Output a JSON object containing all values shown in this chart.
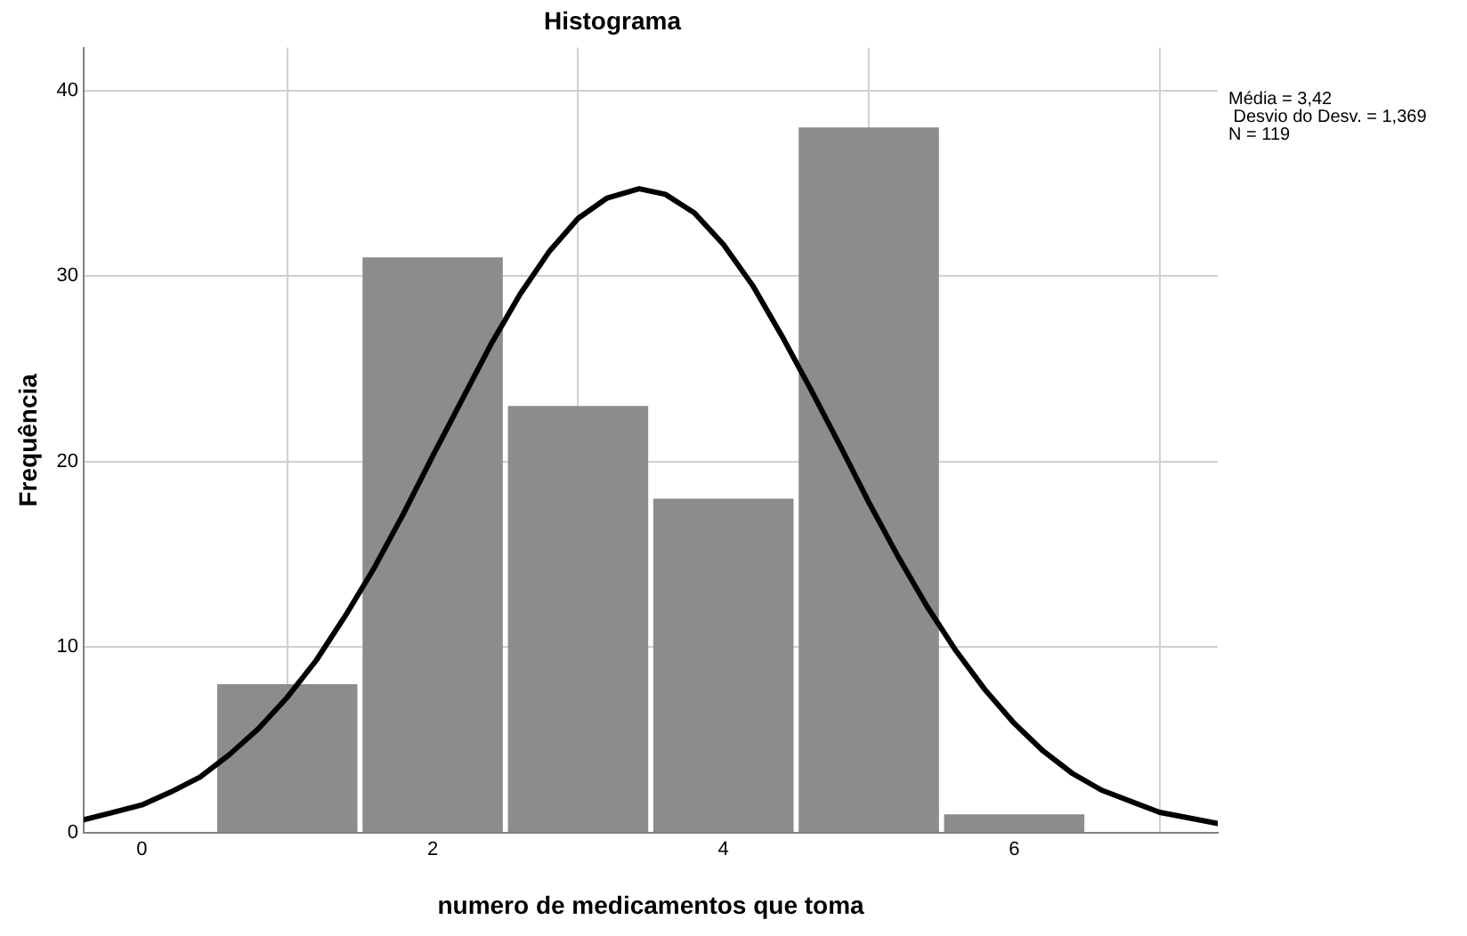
{
  "chart_data": {
    "type": "histogram",
    "title": "Histograma",
    "xlabel": "numero de medicamentos que toma",
    "ylabel": "Frequência",
    "bins": [
      0.5,
      1.5,
      2.5,
      3.5,
      4.5,
      5.5,
      6.5
    ],
    "values": [
      8,
      31,
      23,
      18,
      38,
      1
    ],
    "color": "#8c8c8c",
    "series": [
      {
        "type": "line",
        "color": "#000000",
        "x": [
          -0.4,
          -0.2,
          0,
          0.2,
          0.4,
          0.6,
          0.8,
          1,
          1.2,
          1.4,
          1.6,
          1.8,
          2,
          2.2,
          2.4,
          2.6,
          2.8,
          3,
          3.2,
          3.42,
          3.6,
          3.8,
          4,
          4.2,
          4.4,
          4.6,
          4.8,
          5,
          5.2,
          5.4,
          5.6,
          5.8,
          6,
          6.2,
          6.4,
          6.6,
          6.8,
          7,
          7.2,
          7.4
        ],
        "values": [
          0.7,
          1.1,
          1.5,
          2.2,
          3.0,
          4.2,
          5.6,
          7.3,
          9.3,
          11.7,
          14.3,
          17.2,
          20.3,
          23.3,
          26.3,
          29.0,
          31.3,
          33.1,
          34.2,
          34.7,
          34.4,
          33.4,
          31.7,
          29.5,
          26.8,
          23.9,
          20.9,
          17.8,
          14.9,
          12.2,
          9.8,
          7.7,
          5.9,
          4.4,
          3.2,
          2.3,
          1.7,
          1.1,
          0.8,
          0.5
        ]
      }
    ],
    "marker": "none",
    "line_style": "solid",
    "xlim": [
      -0.4,
      7.4
    ],
    "xticks": [
      0,
      2,
      4,
      6
    ],
    "ylim": [
      0,
      42.3
    ],
    "yticks": [
      0,
      10,
      20,
      30,
      40
    ],
    "grid": true,
    "legend": false,
    "annotations": [
      "Média = 3,42",
      " Desvio do Desv. = 1,369",
      "N = 119"
    ]
  }
}
